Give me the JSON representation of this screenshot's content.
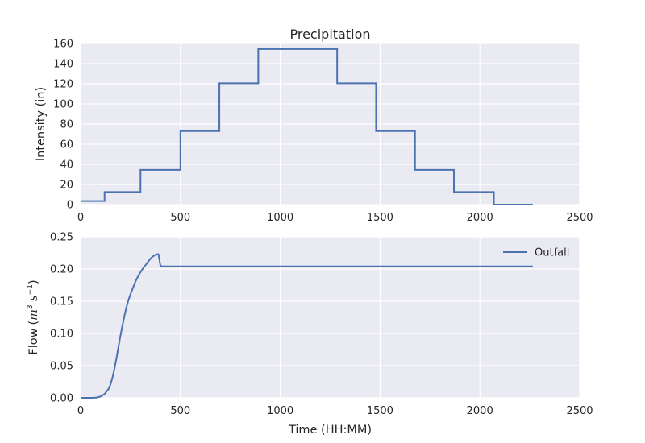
{
  "chart_data": [
    {
      "type": "line",
      "step": true,
      "title": "Precipitation",
      "xlabel": "",
      "ylabel": "Intensity (in)",
      "xlim": [
        0,
        2500
      ],
      "ylim": [
        0,
        160
      ],
      "xticks": [
        0,
        500,
        1000,
        1500,
        2000,
        2500
      ],
      "yticks": [
        0,
        20,
        40,
        60,
        80,
        100,
        120,
        140,
        160
      ],
      "xtick_labels": [
        "0",
        "500",
        "1000",
        "1500",
        "2000",
        "2500"
      ],
      "ytick_labels": [
        "0",
        "20",
        "40",
        "60",
        "80",
        "100",
        "120",
        "140",
        "160"
      ],
      "grid": true,
      "legend": false,
      "series": [
        {
          "color": "#4c72b0",
          "x": [
            0,
            120,
            120,
            300,
            300,
            500,
            500,
            695,
            695,
            890,
            890,
            1285,
            1285,
            1480,
            1480,
            1675,
            1675,
            1870,
            1870,
            2070,
            2070,
            2265
          ],
          "y": [
            3.5,
            3.5,
            12.5,
            12.5,
            34.5,
            34.5,
            73,
            73,
            120.5,
            120.5,
            154.5,
            154.5,
            120.5,
            120.5,
            73,
            73,
            34.5,
            34.5,
            12.5,
            12.5,
            0,
            0
          ]
        }
      ]
    },
    {
      "type": "line",
      "title": "",
      "xlabel": "Time (HH:MM)",
      "ylabel_prefix": "Flow",
      "ylabel_math": "(m^3 s^-1)",
      "ylabel_math_parts": [
        "(",
        "m",
        "3",
        " s",
        "−1",
        ")"
      ],
      "xlim": [
        0,
        2500
      ],
      "ylim": [
        0,
        0.25
      ],
      "xticks": [
        0,
        500,
        1000,
        1500,
        2000,
        2500
      ],
      "yticks": [
        0,
        0.05,
        0.1,
        0.15,
        0.2,
        0.25
      ],
      "xtick_labels": [
        "0",
        "500",
        "1000",
        "1500",
        "2000",
        "2500"
      ],
      "ytick_labels": [
        "0.00",
        "0.05",
        "0.10",
        "0.15",
        "0.20",
        "0.25"
      ],
      "grid": true,
      "legend": "upper right",
      "series": [
        {
          "name": "Outfall",
          "color": "#4c72b0",
          "x": [
            0,
            60,
            80,
            100,
            120,
            140,
            150,
            160,
            170,
            180,
            190,
            200,
            210,
            220,
            230,
            240,
            250,
            260,
            270,
            280,
            290,
            300,
            310,
            320,
            330,
            340,
            350,
            360,
            370,
            380,
            390,
            400,
            410,
            500,
            1000,
            1500,
            2000,
            2265
          ],
          "y": [
            0,
            0,
            0.0005,
            0.002,
            0.006,
            0.014,
            0.021,
            0.032,
            0.046,
            0.062,
            0.08,
            0.097,
            0.113,
            0.128,
            0.141,
            0.152,
            0.161,
            0.169,
            0.177,
            0.184,
            0.19,
            0.195,
            0.2,
            0.204,
            0.208,
            0.212,
            0.216,
            0.219,
            0.221,
            0.223,
            0.223,
            0.205,
            0.204,
            0.204,
            0.204,
            0.204,
            0.204,
            0.204
          ]
        }
      ]
    }
  ]
}
